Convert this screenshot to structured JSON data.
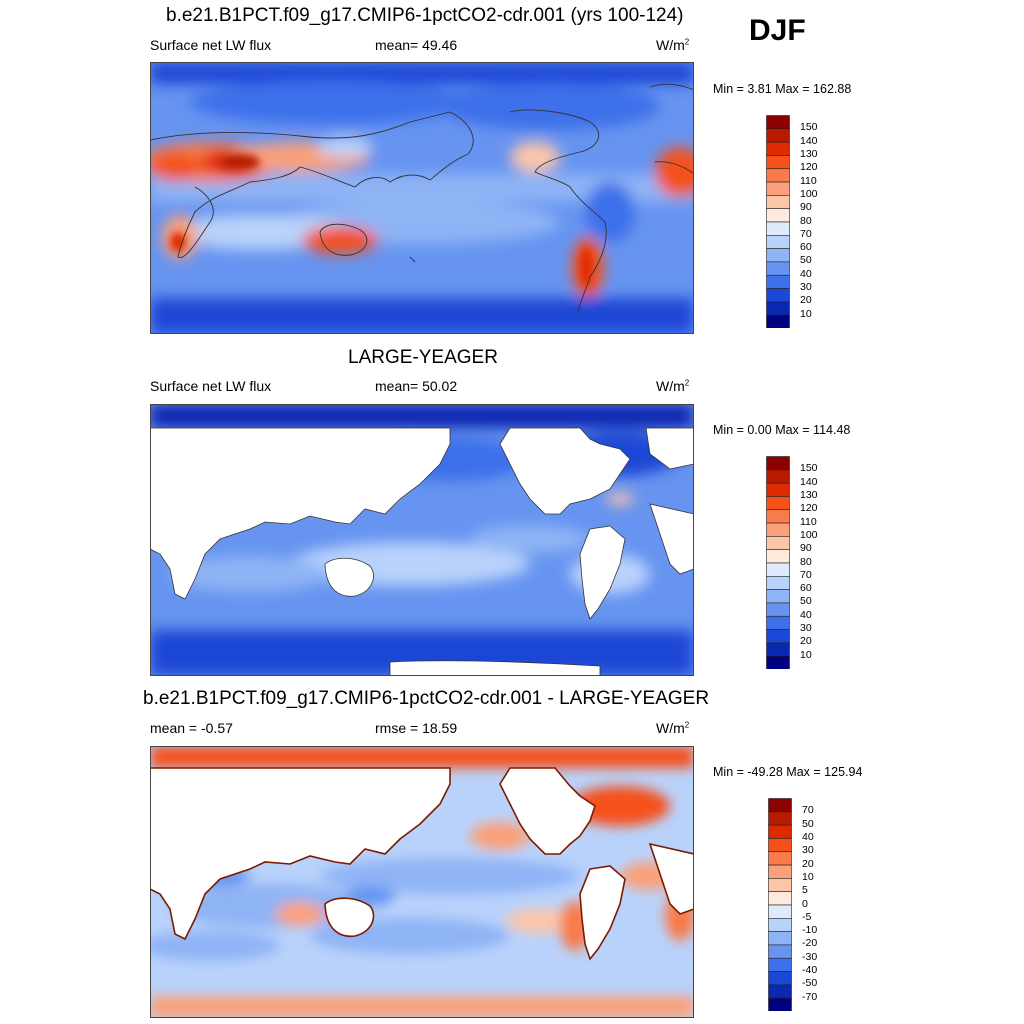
{
  "season": "DJF",
  "panels": [
    {
      "title": "b.e21.B1PCT.f09_g17.CMIP6-1pctCO2-cdr.001 (yrs 100-124)",
      "left_label": "Surface net LW flux",
      "center_label": "mean=  49.46",
      "units_base": "W/m",
      "units_sup": "2",
      "minmax": "Min =   3.81 Max = 162.88",
      "land_masked": false,
      "colorbar": {
        "levels": [
          "150",
          "140",
          "130",
          "120",
          "110",
          "100",
          "90",
          "80",
          "70",
          "60",
          "50",
          "40",
          "30",
          "20",
          "10"
        ],
        "colors": [
          "#8b0000",
          "#b81a00",
          "#de2a00",
          "#f4511b",
          "#f97a4a",
          "#fba07a",
          "#fdc6a8",
          "#fdeadc",
          "#dfeafd",
          "#b9d2fb",
          "#8fb4f5",
          "#6694f0",
          "#3d70ea",
          "#1b47d6",
          "#0a28b0",
          "#000080"
        ]
      }
    },
    {
      "title": "LARGE-YEAGER",
      "left_label": "Surface net LW flux",
      "center_label": "mean=  50.02",
      "units_base": "W/m",
      "units_sup": "2",
      "minmax": "Min =   0.00 Max = 114.48",
      "land_masked": true,
      "colorbar": {
        "levels": [
          "150",
          "140",
          "130",
          "120",
          "110",
          "100",
          "90",
          "80",
          "70",
          "60",
          "50",
          "40",
          "30",
          "20",
          "10"
        ],
        "colors": [
          "#8b0000",
          "#b81a00",
          "#de2a00",
          "#f4511b",
          "#f97a4a",
          "#fba07a",
          "#fdc6a8",
          "#fdeadc",
          "#dfeafd",
          "#b9d2fb",
          "#8fb4f5",
          "#6694f0",
          "#3d70ea",
          "#1b47d6",
          "#0a28b0",
          "#000080"
        ]
      }
    },
    {
      "title": "b.e21.B1PCT.f09_g17.CMIP6-1pctCO2-cdr.001 - LARGE-YEAGER",
      "left_label": "mean =  -0.57",
      "center_label": "rmse =  18.59",
      "units_base": "W/m",
      "units_sup": "2",
      "minmax": "Min = -49.28 Max = 125.94",
      "land_masked": true,
      "colorbar": {
        "levels": [
          "70",
          "50",
          "40",
          "30",
          "20",
          "10",
          "5",
          "0",
          "-5",
          "-10",
          "-20",
          "-30",
          "-40",
          "-50",
          "-70"
        ],
        "colors": [
          "#8b0000",
          "#b81a00",
          "#de2a00",
          "#f4511b",
          "#f97a4a",
          "#fba07a",
          "#fdc6a8",
          "#fdeadc",
          "#dfeafd",
          "#b9d2fb",
          "#8fb4f5",
          "#6694f0",
          "#3d70ea",
          "#1b47d6",
          "#0a28b0",
          "#000080"
        ]
      }
    }
  ]
}
